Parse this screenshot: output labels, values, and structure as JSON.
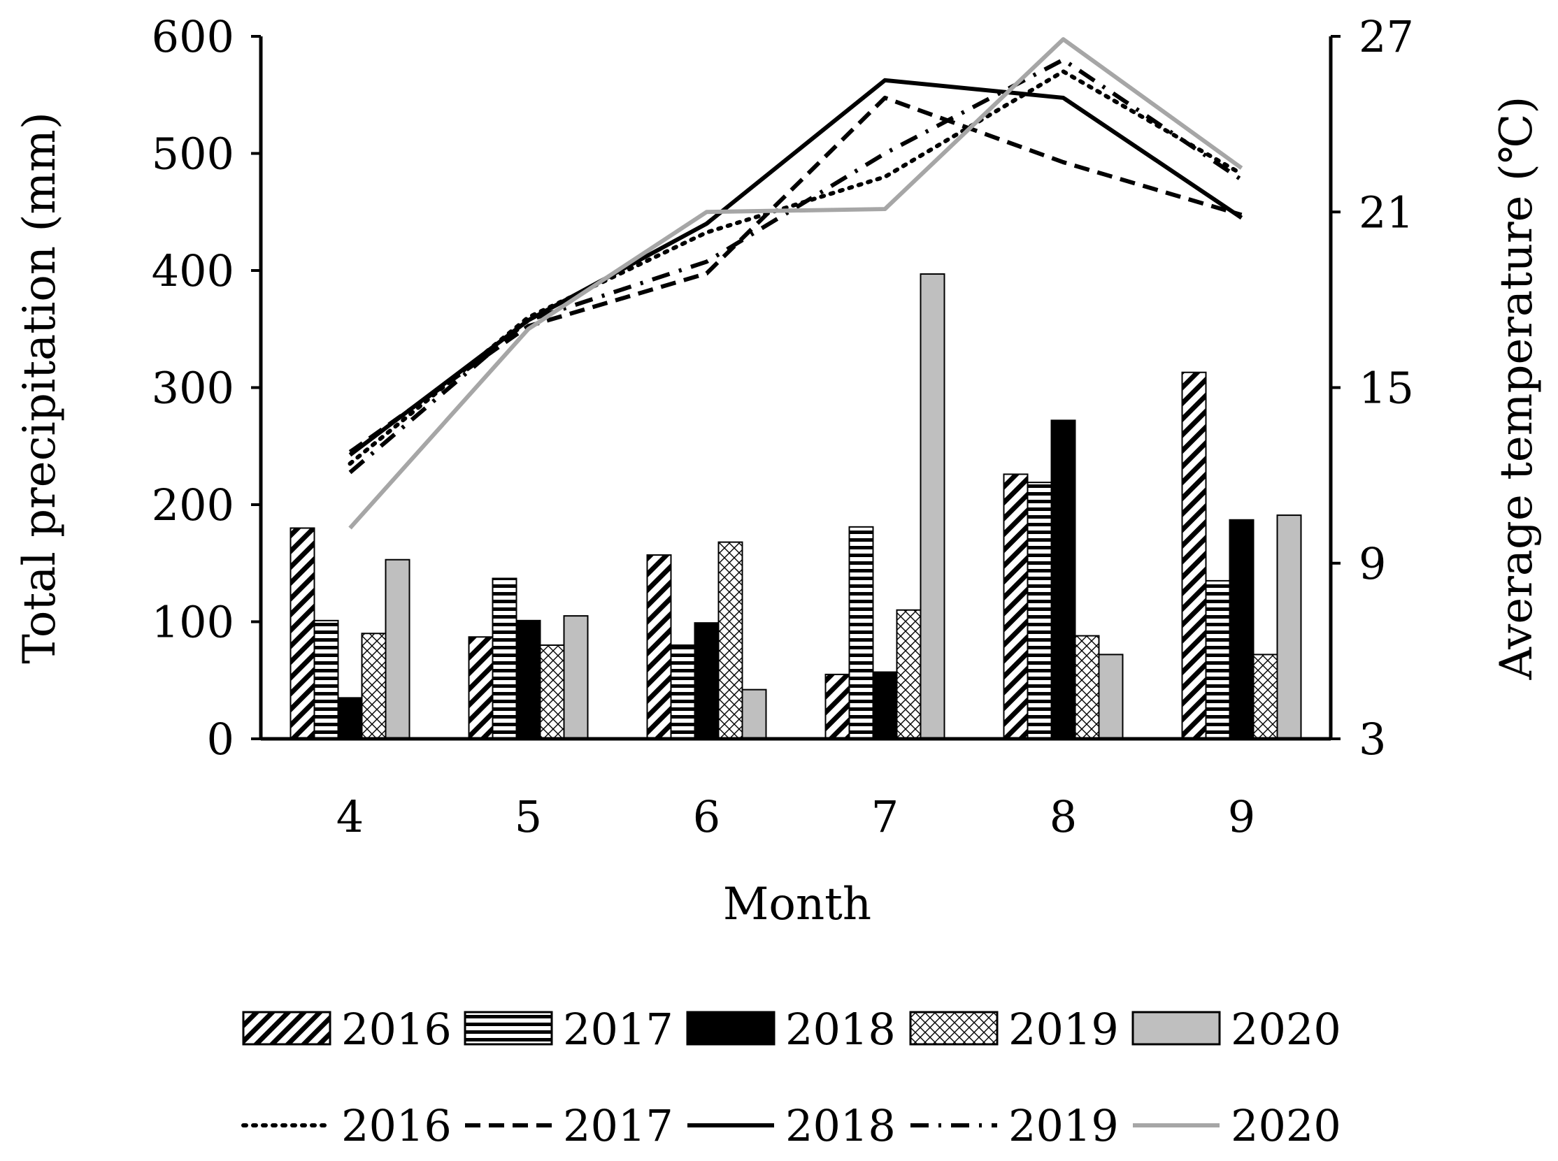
{
  "chart_data": {
    "type": "bar+line",
    "categories": [
      "4",
      "5",
      "6",
      "7",
      "8",
      "9"
    ],
    "xlabel": "Month",
    "ylabel": "Total precipitation (mm)",
    "y2label": "Average temperature (℃)",
    "ylim": [
      0,
      600
    ],
    "y2lim": [
      3,
      27
    ],
    "yticks": [
      "0",
      "100",
      "200",
      "300",
      "400",
      "500",
      "600"
    ],
    "y2ticks": [
      "3",
      "9",
      "15",
      "21",
      "27"
    ],
    "bar_series": [
      {
        "name": "2016",
        "pattern": "diagonal",
        "values": [
          180,
          87,
          157,
          55,
          226,
          313
        ]
      },
      {
        "name": "2017",
        "pattern": "horizontal",
        "values": [
          101,
          137,
          80,
          181,
          219,
          135
        ]
      },
      {
        "name": "2018",
        "pattern": "solid-black",
        "values": [
          35,
          101,
          99,
          57,
          272,
          187
        ]
      },
      {
        "name": "2019",
        "pattern": "crosshatch",
        "values": [
          90,
          80,
          168,
          110,
          88,
          72
        ]
      },
      {
        "name": "2020",
        "pattern": "solid-gray",
        "values": [
          153,
          105,
          42,
          397,
          72,
          191
        ]
      }
    ],
    "line_series": [
      {
        "name": "2016",
        "style": "dotted",
        "values": [
          12.4,
          17.4,
          20.3,
          22.2,
          25.8,
          22.3
        ]
      },
      {
        "name": "2017",
        "style": "dashed",
        "values": [
          12.8,
          17.1,
          18.9,
          24.9,
          22.7,
          20.9
        ]
      },
      {
        "name": "2018",
        "style": "solid-black",
        "values": [
          12.7,
          17.3,
          20.6,
          25.5,
          24.9,
          20.8
        ]
      },
      {
        "name": "2019",
        "style": "dash-dot",
        "values": [
          12.1,
          17.3,
          19.3,
          23.0,
          26.2,
          22.1
        ]
      },
      {
        "name": "2020",
        "style": "solid-gray",
        "values": [
          10.2,
          17.0,
          21.0,
          21.1,
          26.9,
          22.5
        ]
      }
    ],
    "legend_position": "bottom"
  }
}
